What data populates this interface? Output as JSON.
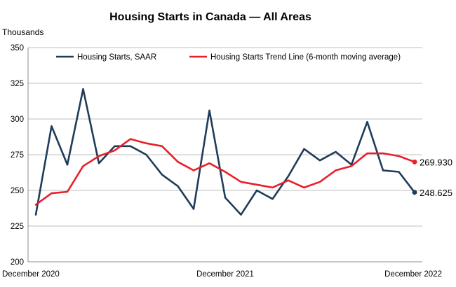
{
  "chart_data": {
    "type": "line",
    "title": "Housing Starts in Canada — All Areas",
    "y_unit_label": "Thousands",
    "ylim": [
      200,
      350
    ],
    "yticks": [
      200,
      225,
      250,
      275,
      300,
      325,
      350
    ],
    "x_tick_labels": [
      "December 2020",
      "December 2021",
      "December 2022"
    ],
    "grid": true,
    "legend_position": "top",
    "x": [
      "2020-12",
      "2021-01",
      "2021-02",
      "2021-03",
      "2021-04",
      "2021-05",
      "2021-06",
      "2021-07",
      "2021-08",
      "2021-09",
      "2021-10",
      "2021-11",
      "2021-12",
      "2022-01",
      "2022-02",
      "2022-03",
      "2022-04",
      "2022-05",
      "2022-06",
      "2022-07",
      "2022-08",
      "2022-09",
      "2022-10",
      "2022-11",
      "2022-12"
    ],
    "series": [
      {
        "name": "Housing Starts, SAAR",
        "color": "#1f3c5a",
        "values": [
          233,
          295,
          268,
          321,
          269,
          281,
          281,
          275,
          261,
          253,
          237,
          306,
          245,
          233,
          250,
          244,
          260,
          279,
          271,
          277,
          268,
          298,
          264,
          263,
          248.625
        ],
        "end_label": "248.625"
      },
      {
        "name": "Housing Starts Trend Line (6-month moving average)",
        "color": "#e8202a",
        "values": [
          240,
          248,
          249,
          267,
          274,
          278,
          286,
          283,
          281,
          270,
          264,
          269,
          263,
          256,
          254,
          252,
          257,
          252,
          256,
          264,
          267,
          276,
          276,
          274,
          269.93
        ],
        "end_label": "269.930"
      }
    ]
  }
}
